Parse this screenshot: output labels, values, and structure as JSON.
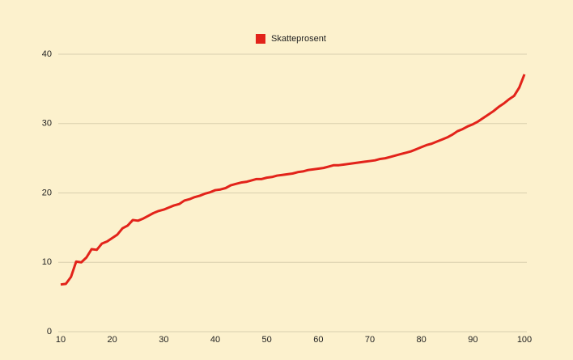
{
  "chart_data": {
    "type": "line",
    "x": [
      10,
      11,
      12,
      13,
      14,
      15,
      16,
      17,
      18,
      19,
      20,
      21,
      22,
      23,
      24,
      25,
      26,
      27,
      28,
      29,
      30,
      31,
      32,
      33,
      34,
      35,
      36,
      37,
      38,
      39,
      40,
      41,
      42,
      43,
      44,
      45,
      46,
      47,
      48,
      49,
      50,
      51,
      52,
      53,
      54,
      55,
      56,
      57,
      58,
      59,
      60,
      61,
      62,
      63,
      64,
      65,
      66,
      67,
      68,
      69,
      70,
      71,
      72,
      73,
      74,
      75,
      76,
      77,
      78,
      79,
      80,
      81,
      82,
      83,
      84,
      85,
      86,
      87,
      88,
      89,
      90,
      91,
      92,
      93,
      94,
      95,
      96,
      97,
      98,
      99,
      100
    ],
    "series": [
      {
        "name": "Skatteprosent",
        "color": "#e2231a",
        "values": [
          6.8,
          6.9,
          7.9,
          10.1,
          10.0,
          10.7,
          11.9,
          11.8,
          12.7,
          13.0,
          13.5,
          14.0,
          14.9,
          15.3,
          16.1,
          16.0,
          16.3,
          16.7,
          17.1,
          17.4,
          17.6,
          17.9,
          18.2,
          18.4,
          18.9,
          19.1,
          19.4,
          19.6,
          19.9,
          20.1,
          20.4,
          20.5,
          20.7,
          21.1,
          21.3,
          21.5,
          21.6,
          21.8,
          22.0,
          22.0,
          22.2,
          22.3,
          22.5,
          22.6,
          22.7,
          22.8,
          23.0,
          23.1,
          23.3,
          23.4,
          23.5,
          23.6,
          23.8,
          24.0,
          24.0,
          24.1,
          24.2,
          24.3,
          24.4,
          24.5,
          24.6,
          24.7,
          24.9,
          25.0,
          25.2,
          25.4,
          25.6,
          25.8,
          26.0,
          26.3,
          26.6,
          26.9,
          27.1,
          27.4,
          27.7,
          28.0,
          28.4,
          28.9,
          29.2,
          29.6,
          29.9,
          30.3,
          30.8,
          31.3,
          31.8,
          32.4,
          32.9,
          33.5,
          34.0,
          35.2,
          37.1
        ]
      }
    ],
    "xlim": [
      10,
      100
    ],
    "xticks": [
      10,
      20,
      30,
      40,
      50,
      60,
      70,
      80,
      90,
      100
    ],
    "ylim": [
      0,
      40
    ],
    "yticks": [
      0,
      10,
      20,
      30,
      40
    ],
    "grid": true,
    "legend": "top"
  }
}
